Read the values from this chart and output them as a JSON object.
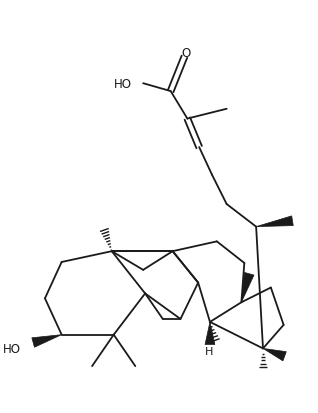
{
  "background": "#ffffff",
  "line_color": "#1a1a1a",
  "line_width": 1.3,
  "figsize": [
    3.18,
    4.14
  ],
  "dpi": 100,
  "xlim": [
    0,
    318
  ],
  "ylim": [
    0,
    414
  ]
}
